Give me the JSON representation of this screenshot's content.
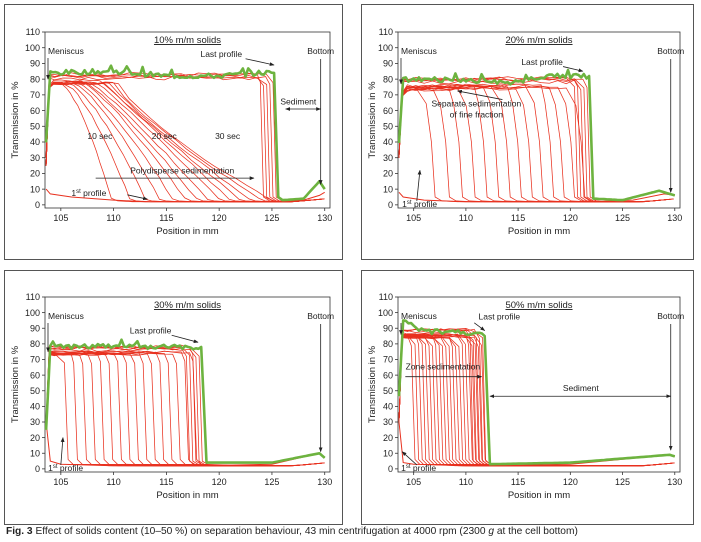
{
  "figure": {
    "caption_label": "Fig. 3",
    "caption_text_1": "Effect of solids content (10–50 %) on separation behaviour, 43 min centrifugation at 4000 rpm (2300",
    "caption_g": "g",
    "caption_text_2": "at the cell bottom)"
  },
  "colors": {
    "profile": "#e8311f",
    "last_profile": "#6db33f",
    "axis": "#333333",
    "arrow": "#222222"
  },
  "chart_data": [
    {
      "type": "line",
      "title": "10% m/m solids",
      "xlabel": "Position in mm",
      "ylabel": "Transmission in %",
      "xlim": [
        103.5,
        130.5
      ],
      "ylim": [
        -2,
        110
      ],
      "xticks": [
        105,
        110,
        115,
        120,
        125,
        130
      ],
      "yticks": [
        0,
        10,
        20,
        30,
        40,
        50,
        60,
        70,
        80,
        90,
        100,
        110
      ],
      "profile_mode": "polydisperse",
      "n_profiles": 14,
      "plateau": 82,
      "front_position": 125.5,
      "series": [
        {
          "name": "1st profile",
          "x": [
            103.6,
            104,
            106,
            110,
            113,
            125,
            126,
            128,
            129.5,
            130
          ],
          "y": [
            10,
            7,
            5,
            3,
            2,
            2,
            2,
            3,
            6,
            8
          ]
        },
        {
          "name": "Last profile",
          "x": [
            103.6,
            104,
            110,
            115,
            120,
            124,
            125.2,
            125.6,
            126,
            128,
            129.5,
            130
          ],
          "y": [
            40,
            84,
            85,
            82,
            82,
            84,
            84,
            5,
            3,
            4,
            15,
            10
          ]
        }
      ],
      "annotations": [
        "Meniscus",
        "Bottom",
        "Last profile",
        "Sediment",
        "10 sec",
        "20 sec",
        "30 sec",
        "Polydisperse sedimentation",
        "1",
        "st",
        "profile"
      ]
    },
    {
      "type": "line",
      "title": "20% m/m solids",
      "xlabel": "Position in mm",
      "ylabel": "Transmission in %",
      "xlim": [
        103.5,
        130.5
      ],
      "ylim": [
        -2,
        110
      ],
      "xticks": [
        105,
        110,
        115,
        120,
        125,
        130
      ],
      "yticks": [
        0,
        10,
        20,
        30,
        40,
        50,
        60,
        70,
        80,
        90,
        100,
        110
      ],
      "profile_mode": "separate",
      "n_profiles": 14,
      "plateau": 79,
      "front_position": 122,
      "series": [
        {
          "name": "1st profile",
          "x": [
            103.6,
            104,
            106,
            110,
            122,
            126,
            129,
            130
          ],
          "y": [
            8,
            5,
            3,
            2,
            2,
            3,
            7,
            6
          ]
        },
        {
          "name": "Last profile",
          "x": [
            103.6,
            104,
            110,
            115,
            118,
            121.8,
            122.2,
            125,
            128.5,
            130
          ],
          "y": [
            40,
            80,
            79,
            78,
            82,
            82,
            4,
            3,
            9,
            6
          ]
        }
      ],
      "annotations": [
        "Meniscus",
        "Bottom",
        "Last profile",
        "Separate sedimentation",
        "of fine fraction",
        "1",
        "st",
        "profile"
      ]
    },
    {
      "type": "line",
      "title": "30% m/m solids",
      "xlabel": "Position in mm",
      "ylabel": "Transmission in %",
      "xlim": [
        103.5,
        130.5
      ],
      "ylim": [
        -2,
        110
      ],
      "xticks": [
        105,
        110,
        115,
        120,
        125,
        130
      ],
      "yticks": [
        0,
        10,
        20,
        30,
        40,
        50,
        60,
        70,
        80,
        90,
        100,
        110
      ],
      "profile_mode": "zone",
      "n_profiles": 16,
      "plateau": 77,
      "front_position": 118.5,
      "series": [
        {
          "name": "1st profile",
          "x": [
            103.6,
            104,
            105,
            110,
            118,
            125,
            129.5,
            130
          ],
          "y": [
            30,
            5,
            3,
            2,
            2,
            3,
            10,
            7
          ]
        },
        {
          "name": "Last profile",
          "x": [
            103.6,
            104,
            110,
            115,
            118.3,
            118.8,
            125,
            129.5,
            130
          ],
          "y": [
            25,
            78,
            79,
            78,
            78,
            4,
            4,
            10,
            7
          ]
        }
      ],
      "annotations": [
        "Meniscus",
        "Bottom",
        "Last profile",
        "1",
        "st",
        "profile"
      ]
    },
    {
      "type": "line",
      "title": "50% m/m solids",
      "xlabel": "Position in mm",
      "ylabel": "Transmission in %",
      "xlim": [
        103.5,
        130.5
      ],
      "ylim": [
        -2,
        110
      ],
      "xticks": [
        105,
        110,
        115,
        120,
        125,
        130
      ],
      "yticks": [
        0,
        10,
        20,
        30,
        40,
        50,
        60,
        70,
        80,
        90,
        100,
        110
      ],
      "profile_mode": "zone",
      "n_profiles": 22,
      "plateau": 88,
      "front_position": 112,
      "series": [
        {
          "name": "1st profile",
          "x": [
            103.6,
            104,
            105,
            110,
            112,
            120,
            129.5,
            130
          ],
          "y": [
            30,
            4,
            3,
            2,
            2,
            3,
            9,
            8
          ]
        },
        {
          "name": "Last profile",
          "x": [
            103.6,
            104,
            106,
            110,
            111.8,
            112.3,
            120,
            129.5,
            130
          ],
          "y": [
            45,
            95,
            88,
            87,
            85,
            3,
            4,
            9,
            8
          ]
        }
      ],
      "annotations": [
        "Meniscus",
        "Bottom",
        "Last profile",
        "Zone sedimentation",
        "Sediment",
        "1",
        "st",
        "profile"
      ]
    }
  ]
}
